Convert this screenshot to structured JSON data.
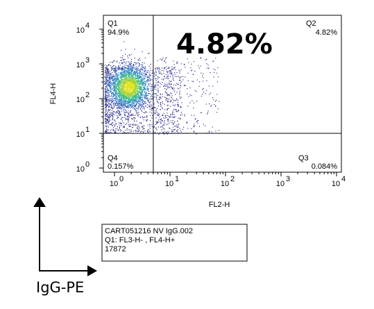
{
  "chart_data": {
    "type": "scatter",
    "xlabel": "FL2-H",
    "ylabel": "FL4-H",
    "xscale": "log",
    "yscale": "log",
    "xlim": [
      1,
      10000
    ],
    "ylim": [
      1,
      10000
    ],
    "x_ticks": [
      {
        "value": 1,
        "base": "10",
        "exp": "0"
      },
      {
        "value": 10,
        "base": "10",
        "exp": "1"
      },
      {
        "value": 100,
        "base": "10",
        "exp": "2"
      },
      {
        "value": 1000,
        "base": "10",
        "exp": "3"
      },
      {
        "value": 10000,
        "base": "10",
        "exp": "4"
      }
    ],
    "y_ticks": [
      {
        "value": 1,
        "base": "10",
        "exp": "0"
      },
      {
        "value": 10,
        "base": "10",
        "exp": "1"
      },
      {
        "value": 100,
        "base": "10",
        "exp": "2"
      },
      {
        "value": 1000,
        "base": "10",
        "exp": "3"
      },
      {
        "value": 10000,
        "base": "10",
        "exp": "4"
      }
    ],
    "gates": {
      "x": 5,
      "y": 10
    },
    "quadrants": [
      {
        "name": "Q1",
        "percent": "94.9%"
      },
      {
        "name": "Q2",
        "percent": "4.82%"
      },
      {
        "name": "Q3",
        "percent": "0.084%"
      },
      {
        "name": "Q4",
        "percent": "0.157%"
      }
    ],
    "highlight": "4.82%",
    "population": {
      "core_center": [
        1.8,
        220
      ],
      "event_count": 17872
    }
  },
  "info_box": {
    "line1": "CART051216 NV IgG.002",
    "line2": "Q1: FL3-H- , FL4-H+",
    "line3": "17872"
  },
  "bottom_label": "IgG-PE"
}
